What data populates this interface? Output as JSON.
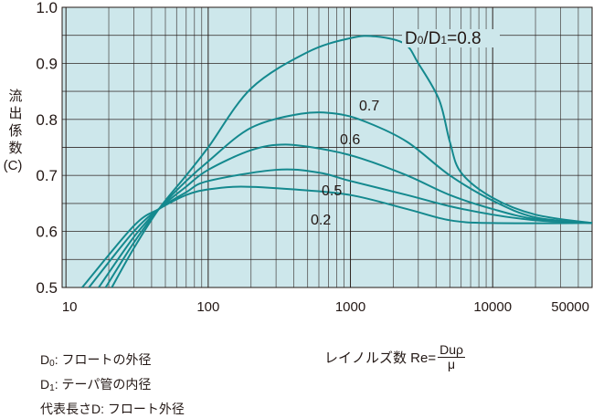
{
  "chart_data": {
    "type": "line",
    "title": "",
    "xlabel": "レイノルズ数 Re=",
    "ylabel": "流出係数 (C)",
    "xscale": "log",
    "xlim": [
      9.4,
      50000
    ],
    "ylim": [
      0.5,
      1.0
    ],
    "grid": true,
    "x_tick_labels": [
      "10",
      "100",
      "1000",
      "10000",
      "50000"
    ],
    "x_tick_values": [
      10,
      100,
      1000,
      10000,
      50000
    ],
    "y_tick_labels": [
      "0.5",
      "0.6",
      "0.7",
      "0.8",
      "0.9",
      "1.0"
    ],
    "y_tick_values": [
      0.5,
      0.6,
      0.7,
      0.8,
      0.9,
      1.0
    ],
    "colors": {
      "line": "#14898e",
      "plot_bg": "#cde7eb",
      "grid": "#231815"
    },
    "series": [
      {
        "name": "D0/D1=0.8",
        "label": "D0/D1=0.8",
        "x": [
          21,
          30,
          45,
          70,
          100,
          200,
          500,
          1000,
          1500,
          2400,
          3000,
          4200,
          5000,
          6000,
          10000,
          20000,
          50000
        ],
        "y": [
          0.5,
          0.57,
          0.64,
          0.7,
          0.75,
          0.855,
          0.92,
          0.945,
          0.948,
          0.935,
          0.9,
          0.835,
          0.76,
          0.705,
          0.66,
          0.63,
          0.615
        ]
      },
      {
        "name": "0.7",
        "label": "0.7",
        "x": [
          19,
          30,
          45,
          70,
          100,
          200,
          450,
          800,
          1300,
          2500,
          5000,
          10000,
          20000,
          50000
        ],
        "y": [
          0.5,
          0.58,
          0.64,
          0.69,
          0.725,
          0.785,
          0.81,
          0.81,
          0.795,
          0.76,
          0.7,
          0.655,
          0.625,
          0.615
        ]
      },
      {
        "name": "0.6",
        "label": "0.6",
        "x": [
          17,
          30,
          45,
          70,
          100,
          200,
          350,
          700,
          1200,
          2500,
          5000,
          10000,
          20000,
          50000
        ],
        "y": [
          0.5,
          0.59,
          0.64,
          0.68,
          0.71,
          0.745,
          0.755,
          0.745,
          0.73,
          0.7,
          0.665,
          0.64,
          0.622,
          0.615
        ]
      },
      {
        "name": "0.5",
        "label": "0.5",
        "x": [
          14.5,
          30,
          45,
          70,
          100,
          300,
          600,
          1000,
          2500,
          5000,
          10000,
          20000,
          50000
        ],
        "y": [
          0.5,
          0.6,
          0.64,
          0.67,
          0.69,
          0.71,
          0.705,
          0.69,
          0.665,
          0.645,
          0.63,
          0.62,
          0.615
        ]
      },
      {
        "name": "0.2",
        "label": "0.2",
        "x": [
          13,
          30,
          45,
          70,
          100,
          170,
          400,
          1000,
          2500,
          5000,
          10000,
          50000
        ],
        "y": [
          0.5,
          0.61,
          0.64,
          0.665,
          0.675,
          0.68,
          0.675,
          0.665,
          0.64,
          0.62,
          0.615,
          0.615
        ]
      }
    ]
  },
  "axis": {
    "ylabel_chars": "流出係数",
    "ylabel_unit": "(C)"
  },
  "notes": {
    "d0_sym": "D",
    "d0_sub": "0",
    "d0_text": ": フロートの外径",
    "d1_sym": "D",
    "d1_sub": "1",
    "d1_text": ": テーパ管の内径",
    "rep": "代表長さD: フロート外径"
  },
  "reynolds": {
    "label": "レイノルズ数 Re=",
    "numerator": "Duρ",
    "denominator": "μ"
  }
}
